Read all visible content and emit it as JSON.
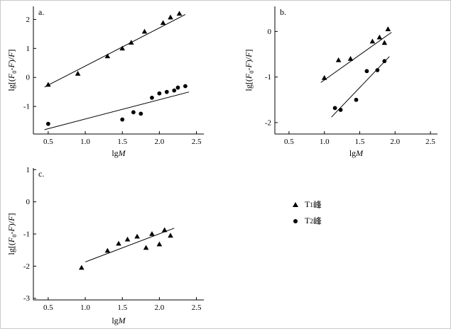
{
  "figure": {
    "legend": {
      "items": [
        {
          "marker": "triangle",
          "base": "T",
          "sub": "1",
          "suffix": " 峰"
        },
        {
          "marker": "circle",
          "base": "T",
          "sub": "2",
          "suffix": " 峰"
        }
      ]
    }
  },
  "chart_data": [
    {
      "id": "a",
      "type": "scatter",
      "panel_label": "a.",
      "xlabel_parts": [
        {
          "t": "lg"
        },
        {
          "t": "M",
          "i": true
        }
      ],
      "ylabel_parts": [
        {
          "t": "lg[("
        },
        {
          "t": "F",
          "i": true
        },
        {
          "t": "0",
          "s": true
        },
        {
          "t": "-"
        },
        {
          "t": "F",
          "i": true
        },
        {
          "t": ")/"
        },
        {
          "t": "F",
          "i": true
        },
        {
          "t": "]"
        }
      ],
      "xlim": [
        0.3,
        2.6
      ],
      "ylim": [
        -1.95,
        2.45
      ],
      "xticks": [
        {
          "v": 0.5,
          "label": "0.5"
        },
        {
          "v": 1.0,
          "label": "1.0"
        },
        {
          "v": 1.5,
          "label": "1.5"
        },
        {
          "v": 2.0,
          "label": "2.0"
        },
        {
          "v": 2.5,
          "label": "2.5"
        }
      ],
      "yticks": [
        {
          "v": -1,
          "label": "-1"
        },
        {
          "v": 0,
          "label": "0"
        },
        {
          "v": 1,
          "label": "1"
        },
        {
          "v": 2,
          "label": "2"
        }
      ],
      "grid": false,
      "series": [
        {
          "name": "T1 峰",
          "marker": "triangle",
          "points": [
            [
              0.5,
              -0.25
            ],
            [
              0.9,
              0.13
            ],
            [
              1.3,
              0.73
            ],
            [
              1.5,
              1.0
            ],
            [
              1.62,
              1.2
            ],
            [
              1.8,
              1.58
            ],
            [
              2.05,
              1.88
            ],
            [
              2.15,
              2.07
            ],
            [
              2.27,
              2.2
            ]
          ],
          "fit_line": [
            [
              0.45,
              -0.33
            ],
            [
              2.35,
              2.17
            ]
          ]
        },
        {
          "name": "T2 峰",
          "marker": "circle",
          "points": [
            [
              0.5,
              -1.6
            ],
            [
              1.5,
              -1.45
            ],
            [
              1.65,
              -1.2
            ],
            [
              1.75,
              -1.25
            ],
            [
              1.9,
              -0.7
            ],
            [
              2.0,
              -0.55
            ],
            [
              2.1,
              -0.5
            ],
            [
              2.2,
              -0.45
            ],
            [
              2.25,
              -0.35
            ],
            [
              2.35,
              -0.3
            ]
          ],
          "fit_line": [
            [
              0.45,
              -1.8
            ],
            [
              2.4,
              -0.5
            ]
          ]
        }
      ]
    },
    {
      "id": "b",
      "type": "scatter",
      "panel_label": "b.",
      "xlabel_parts": [
        {
          "t": "lg"
        },
        {
          "t": "M",
          "i": true
        }
      ],
      "ylabel_parts": [
        {
          "t": "lg[("
        },
        {
          "t": "F",
          "i": true
        },
        {
          "t": "0",
          "s": true
        },
        {
          "t": "-"
        },
        {
          "t": "F",
          "i": true
        },
        {
          "t": ")/"
        },
        {
          "t": "F",
          "i": true
        },
        {
          "t": "]"
        }
      ],
      "xlim": [
        0.3,
        2.6
      ],
      "ylim": [
        -2.25,
        0.55
      ],
      "xticks": [
        {
          "v": 0.5,
          "label": "0.5"
        },
        {
          "v": 1.0,
          "label": "1.0"
        },
        {
          "v": 1.5,
          "label": "1.5"
        },
        {
          "v": 2.0,
          "label": "2.0"
        },
        {
          "v": 2.5,
          "label": "2.5"
        }
      ],
      "yticks": [
        {
          "v": -2,
          "label": "-2"
        },
        {
          "v": -1,
          "label": "-1"
        },
        {
          "v": 0,
          "label": "0"
        }
      ],
      "grid": false,
      "series": [
        {
          "name": "T1 峰",
          "marker": "triangle",
          "points": [
            [
              1.0,
              -1.02
            ],
            [
              1.2,
              -0.63
            ],
            [
              1.37,
              -0.6
            ],
            [
              1.68,
              -0.22
            ],
            [
              1.78,
              -0.13
            ],
            [
              1.85,
              -0.25
            ],
            [
              1.9,
              0.05
            ]
          ],
          "fit_line": [
            [
              0.95,
              -1.12
            ],
            [
              1.95,
              -0.02
            ]
          ]
        },
        {
          "name": "T2 峰",
          "marker": "circle",
          "points": [
            [
              1.15,
              -1.68
            ],
            [
              1.23,
              -1.72
            ],
            [
              1.45,
              -1.5
            ],
            [
              1.6,
              -0.87
            ],
            [
              1.75,
              -0.85
            ],
            [
              1.85,
              -0.65
            ]
          ],
          "fit_line": [
            [
              1.1,
              -1.88
            ],
            [
              1.92,
              -0.55
            ]
          ]
        }
      ]
    },
    {
      "id": "c",
      "type": "scatter",
      "panel_label": "c.",
      "xlabel_parts": [
        {
          "t": "lg"
        },
        {
          "t": "M",
          "i": true
        }
      ],
      "ylabel_parts": [
        {
          "t": "lg[("
        },
        {
          "t": "F",
          "i": true
        },
        {
          "t": "0",
          "s": true
        },
        {
          "t": "-"
        },
        {
          "t": "F",
          "i": true
        },
        {
          "t": ")/"
        },
        {
          "t": "F",
          "i": true
        },
        {
          "t": "]"
        }
      ],
      "xlim": [
        0.3,
        2.6
      ],
      "ylim": [
        -3.05,
        1.05
      ],
      "xticks": [
        {
          "v": 0.5,
          "label": "0.5"
        },
        {
          "v": 1.0,
          "label": "1.0"
        },
        {
          "v": 1.5,
          "label": "1.5"
        },
        {
          "v": 2.0,
          "label": "2.0"
        },
        {
          "v": 2.5,
          "label": "2.5"
        }
      ],
      "yticks": [
        {
          "v": -3,
          "label": "-3"
        },
        {
          "v": -2,
          "label": "-2"
        },
        {
          "v": -1,
          "label": "-1"
        },
        {
          "v": 0,
          "label": "0"
        },
        {
          "v": 1,
          "label": "1"
        }
      ],
      "grid": false,
      "series": [
        {
          "name": "T1 峰",
          "marker": "triangle",
          "points": [
            [
              0.95,
              -2.05
            ],
            [
              1.3,
              -1.52
            ],
            [
              1.45,
              -1.3
            ],
            [
              1.57,
              -1.17
            ],
            [
              1.7,
              -1.08
            ],
            [
              1.82,
              -1.43
            ],
            [
              1.9,
              -1.0
            ],
            [
              2.0,
              -1.32
            ],
            [
              2.07,
              -0.88
            ],
            [
              2.15,
              -1.05
            ]
          ],
          "fit_line": [
            [
              1.0,
              -1.87
            ],
            [
              2.2,
              -0.82
            ]
          ]
        }
      ]
    }
  ]
}
